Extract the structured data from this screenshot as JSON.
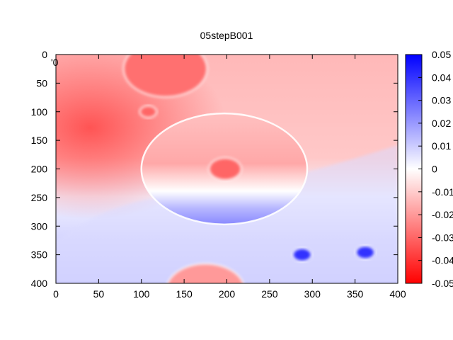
{
  "chart_data": {
    "type": "heatmap",
    "title": "05stepB001",
    "legend_fragment": "'0",
    "xlabel": "",
    "ylabel": "",
    "xlim": [
      0,
      400
    ],
    "ylim": [
      0,
      400
    ],
    "y_inverted": true,
    "x_ticks": [
      "0",
      "50",
      "100",
      "150",
      "200",
      "250",
      "300",
      "350",
      "400"
    ],
    "y_ticks": [
      "0",
      "50",
      "100",
      "150",
      "200",
      "250",
      "300",
      "350",
      "400"
    ],
    "colorbar": {
      "range": [
        -0.05,
        0.05
      ],
      "ticks": [
        "0.05",
        "0.04",
        "0.03",
        "0.02",
        "0.01",
        "0",
        "-0.01",
        "-0.02",
        "-0.03",
        "-0.04",
        "-0.05"
      ],
      "colors": {
        "min": "#ff0000",
        "mid": "#ffffff",
        "max": "#0000ff"
      }
    },
    "field_features": [
      {
        "kind": "background",
        "description_value": -0.02
      },
      {
        "kind": "circle",
        "cx": 197,
        "cy": 200,
        "r": 97,
        "upper_value": -0.02,
        "lower_value": 0.025
      },
      {
        "kind": "circle",
        "cx": 128,
        "cy": 25,
        "r": 48,
        "value": -0.028
      },
      {
        "kind": "circle",
        "cx": 108,
        "cy": 100,
        "r": 9,
        "value": -0.03
      },
      {
        "kind": "circle",
        "cx": 198,
        "cy": 200,
        "r": 18,
        "value": -0.03
      },
      {
        "kind": "circle",
        "cx": 288,
        "cy": 350,
        "r": 10,
        "value": 0.04
      },
      {
        "kind": "circle",
        "cx": 362,
        "cy": 346,
        "r": 10,
        "value": 0.04
      },
      {
        "kind": "circle",
        "cx": 175,
        "cy": 412,
        "r": 45,
        "value": -0.02
      }
    ]
  }
}
